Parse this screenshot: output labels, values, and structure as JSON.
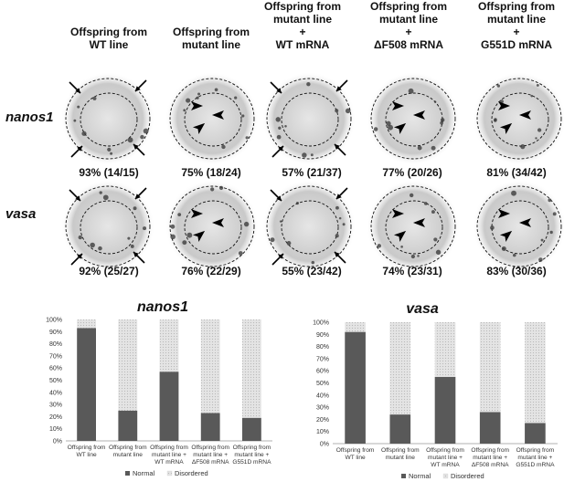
{
  "colors": {
    "normal": "#595959",
    "disordered_fill": "#e4e4e4"
  },
  "panels": {
    "columns": [
      {
        "label": "Offspring from\nWT line"
      },
      {
        "label": "Offspring from\nmutant line"
      },
      {
        "label": "Offspring from\nmutant line\n+\nWT mRNA"
      },
      {
        "label": "Offspring from\nmutant line\n+\nΔF508 mRNA"
      },
      {
        "label": "Offspring from\nmutant line\n+\nG551D mRNA"
      }
    ],
    "rows": [
      {
        "label": "nanos1",
        "markers": [
          "arrows",
          "arrowheads",
          "arrows",
          "arrowheads",
          "arrowheads"
        ],
        "percentages": [
          "93% (14/15)",
          "75% (18/24)",
          "57% (21/37)",
          "77% (20/26)",
          "81% (34/42)"
        ]
      },
      {
        "label": "vasa",
        "markers": [
          "arrows",
          "arrowheads",
          "arrows",
          "arrowheads",
          "arrowheads"
        ],
        "percentages": [
          "92% (25/27)",
          "76% (22/29)",
          "55% (23/42)",
          "74% (23/31)",
          "83% (30/36)"
        ]
      }
    ]
  },
  "chart_data": [
    {
      "type": "bar",
      "stacked": true,
      "title": "nanos1",
      "categories": [
        "Offspring from\nWT line",
        "Offspring from\nmutant line",
        "Offspring from\nmutant line +\nWT mRNA",
        "Offspring from\nmutant line +\nΔF508 mRNA",
        "Offspring from\nmutant line +\nG551D mRNA"
      ],
      "series": [
        {
          "name": "Normal",
          "values": [
            93,
            25,
            57,
            23,
            19
          ]
        },
        {
          "name": "Disordered",
          "values": [
            7,
            75,
            43,
            77,
            81
          ]
        }
      ],
      "ylim": [
        0,
        100
      ],
      "yticks": [
        "0%",
        "10%",
        "20%",
        "30%",
        "40%",
        "50%",
        "60%",
        "70%",
        "80%",
        "90%",
        "100%"
      ],
      "grid": false,
      "legend": "bottom"
    },
    {
      "type": "bar",
      "stacked": true,
      "title": "vasa",
      "categories": [
        "Offspring from\nWT line",
        "Offspring from\nmutant line",
        "Offspring from\nmutant line +\nWT mRNA",
        "Offspring from\nmutant line +\nΔF508 mRNA",
        "Offspring from\nmutant line +\nG551D mRNA"
      ],
      "series": [
        {
          "name": "Normal",
          "values": [
            92,
            24,
            55,
            26,
            17
          ]
        },
        {
          "name": "Disordered",
          "values": [
            8,
            76,
            45,
            74,
            83
          ]
        }
      ],
      "ylim": [
        0,
        100
      ],
      "yticks": [
        "0%",
        "10%",
        "20%",
        "30%",
        "40%",
        "50%",
        "60%",
        "70%",
        "80%",
        "90%",
        "100%"
      ],
      "grid": false,
      "legend": "bottom"
    }
  ]
}
